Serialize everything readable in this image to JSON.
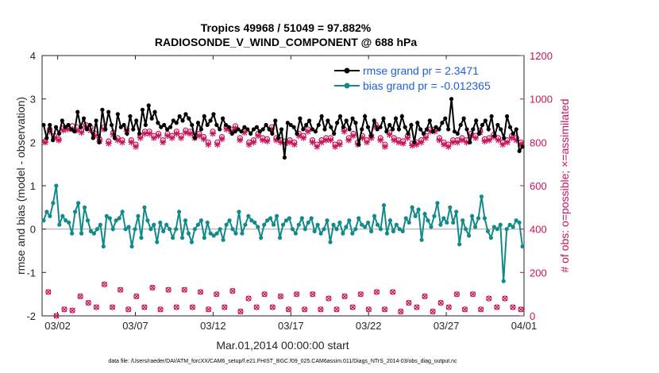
{
  "chart_data": {
    "type": "line",
    "title_line1": "Tropics 49968 / 51049 = 97.882%",
    "title_line2": "RADIOSONDE_V_WIND_COMPONENT @ 688 hPa",
    "ylabel_left": "rmse and bias (model - observation)",
    "ylabel_right": "# of obs: o=possible; ×=assimilated",
    "xlabel": "Mar.01,2014 00:00:00 start",
    "footer": "data file: /Users/raeder/DAI/ATM_forcXX/CAM6_setup/f.e21.FHIST_BGC.f09_025.CAM6assim.011/Diags_NTrS_2014-03/obs_diag_output.nc",
    "xlim": [
      0,
      31
    ],
    "ylim_left": [
      -2,
      4
    ],
    "ylim_right": [
      0,
      1200
    ],
    "x_ticks": [
      1,
      6,
      11,
      16,
      21,
      26,
      31
    ],
    "x_tick_labels": [
      "03/02",
      "03/07",
      "03/12",
      "03/17",
      "03/22",
      "03/27",
      "04/01"
    ],
    "y_ticks_left": [
      -2,
      -1,
      0,
      1,
      2,
      3,
      4
    ],
    "y_tick_labels_left": [
      "-2",
      "-1",
      "0",
      "1",
      "2",
      "3",
      "4"
    ],
    "y_ticks_right": [
      0,
      200,
      400,
      600,
      800,
      1000,
      1200
    ],
    "y_tick_labels_right": [
      "0",
      "200",
      "400",
      "600",
      "800",
      "1000",
      "1200"
    ],
    "legend": [
      {
        "label": "rmse grand pr = 2.3471",
        "color": "#000000"
      },
      {
        "label": "bias grand pr = -0.012365",
        "color": "#138a8a"
      }
    ],
    "colors": {
      "rmse": "#000000",
      "bias": "#138a8a",
      "obs": "#c8145a",
      "zero_line": "#bdbdbd"
    },
    "series": [
      {
        "name": "rmse",
        "axis": "left",
        "values": [
          2.4,
          2.1,
          2.4,
          2.05,
          2.35,
          2.2,
          2.5,
          2.35,
          2.4,
          2.3,
          2.25,
          2.7,
          2.35,
          2.55,
          2.3,
          2.4,
          2.1,
          2.5,
          2.0,
          2.75,
          2.3,
          2.7,
          2.4,
          2.1,
          2.65,
          2.35,
          2.4,
          2.2,
          2.6,
          2.3,
          2.5,
          2.2,
          2.75,
          2.4,
          2.85,
          2.55,
          2.7,
          2.45,
          2.35,
          2.4,
          2.3,
          2.35,
          2.5,
          2.45,
          2.6,
          2.5,
          2.65,
          2.55,
          2.4,
          2.1,
          2.45,
          2.3,
          2.6,
          2.4,
          2.5,
          2.65,
          2.4,
          2.3,
          2.55,
          2.4,
          2.35,
          2.2,
          2.25,
          2.3,
          2.25,
          2.35,
          2.3,
          2.2,
          2.3,
          2.35,
          2.25,
          2.3,
          2.4,
          2.3,
          2.2,
          2.5,
          2.1,
          2.3,
          1.65,
          2.45,
          2.4,
          2.35,
          2.2,
          2.55,
          2.3,
          2.4,
          2.5,
          2.3,
          2.25,
          2.4,
          2.6,
          2.3,
          2.5,
          2.35,
          2.2,
          2.45,
          2.6,
          2.35,
          2.5,
          2.3,
          2.55,
          2.45,
          1.95,
          2.3,
          2.6,
          2.35,
          2.15,
          2.5,
          2.3,
          2.35,
          2.55,
          2.25,
          2.4,
          2.3,
          2.55,
          2.3,
          2.6,
          2.35,
          2.2,
          2.4,
          2.0,
          2.45,
          2.3,
          2.2,
          2.3,
          2.5,
          2.25,
          2.35,
          2.3,
          2.45,
          2.55,
          2.3,
          3.0,
          2.25,
          2.2,
          2.4,
          2.55,
          2.3,
          2.0,
          2.3,
          2.5,
          2.2,
          2.4,
          2.5,
          2.3,
          2.6,
          2.15,
          2.4,
          2.3,
          2.1,
          2.6,
          2.35,
          2.2,
          2.3,
          1.8,
          1.9
        ]
      },
      {
        "name": "bias",
        "axis": "left",
        "values": [
          0.2,
          0.4,
          0.3,
          0.6,
          1.0,
          0.1,
          0.3,
          0.2,
          0.15,
          -0.1,
          0.4,
          0.6,
          -0.1,
          0.5,
          0.2,
          -0.05,
          -0.1,
          0.0,
          0.1,
          -0.4,
          0.3,
          0.25,
          0.0,
          0.2,
          0.25,
          0.4,
          0.0,
          0.05,
          -0.4,
          0.0,
          0.3,
          -0.2,
          0.5,
          0.2,
          0.0,
          0.1,
          -0.3,
          0.15,
          -0.05,
          0.1,
          0.0,
          -0.2,
          0.0,
          0.4,
          -0.2,
          0.2,
          -0.1,
          -0.3,
          0.0,
          0.1,
          0.2,
          -0.2,
          0.15,
          -0.1,
          -0.15,
          -0.1,
          0.0,
          -0.25,
          0.1,
          0.2,
          0.0,
          -0.1,
          0.4,
          -0.1,
          0.1,
          0.3,
          0.2,
          0.15,
          0.05,
          -0.2,
          0.1,
          0.2,
          0.25,
          0.1,
          0.3,
          -0.2,
          0.1,
          0.2,
          0.25,
          0.0,
          -0.1,
          0.1,
          0.25,
          0.0,
          0.15,
          0.25,
          -0.05,
          0.1,
          -0.1,
          0.0,
          0.2,
          -0.3,
          0.1,
          0.0,
          0.15,
          -0.1,
          0.05,
          0.2,
          -0.1,
          0.0,
          0.25,
          0.1,
          0.05,
          0.15,
          -0.05,
          0.3,
          0.1,
          0.0,
          0.55,
          -0.1,
          0.2,
          -0.05,
          0.1,
          0.0,
          -0.05,
          0.25,
          0.15,
          0.5,
          0.3,
          0.45,
          -0.25,
          0.35,
          0.2,
          0.05,
          0.3,
          0.6,
          0.1,
          0.25,
          0.15,
          0.5,
          0.15,
          0.4,
          -0.35,
          0.2,
          0.0,
          -0.15,
          0.3,
          0.05,
          0.25,
          0.75,
          0.25,
          -0.05,
          -0.2,
          0.05,
          0.0,
          0.1,
          -1.2,
          0.0,
          0.1,
          0.05,
          0.2,
          0.15,
          -0.4
        ]
      },
      {
        "name": "obs_possible",
        "axis": "right",
        "values": [
          805,
          860,
          830,
          815,
          865,
          870,
          875,
          870,
          855,
          880,
          870,
          840,
          815,
          870,
          805,
          845,
          820,
          810,
          860,
          810,
          790,
          830,
          850,
          850,
          830,
          840,
          810,
          840,
          830,
          850,
          830,
          855,
          850,
          830,
          840,
          825,
          800,
          850,
          800,
          825,
          870,
          860,
          875,
          820,
          855,
          800,
          810,
          840,
          820,
          815,
          870,
          820,
          810,
          805,
          810,
          800,
          840,
          830,
          860,
          810,
          790,
          810,
          820,
          820,
          790,
          800,
          860,
          820,
          840,
          800,
          830,
          810,
          830,
          880,
          820,
          790,
          845,
          820,
          810,
          805,
          830,
          795,
          800,
          810,
          830,
          860,
          860,
          820,
          800,
          790,
          810,
          810,
          820,
          810,
          840,
          830,
          855,
          815,
          820,
          835,
          820,
          800,
          810,
          830,
          820,
          800
        ]
      },
      {
        "name": "obs_assimilated",
        "axis": "right",
        "values": [
          800,
          850,
          820,
          810,
          855,
          860,
          860,
          855,
          845,
          870,
          855,
          830,
          805,
          860,
          795,
          835,
          810,
          800,
          850,
          800,
          780,
          820,
          840,
          840,
          820,
          830,
          800,
          830,
          820,
          840,
          820,
          845,
          840,
          820,
          830,
          815,
          790,
          840,
          790,
          815,
          860,
          850,
          865,
          810,
          845,
          790,
          800,
          830,
          810,
          805,
          860,
          810,
          800,
          795,
          800,
          790,
          830,
          820,
          850,
          800,
          780,
          800,
          810,
          810,
          780,
          790,
          850,
          810,
          830,
          790,
          820,
          800,
          820,
          870,
          810,
          780,
          835,
          810,
          800,
          795,
          820,
          785,
          790,
          800,
          820,
          850,
          850,
          810,
          790,
          780,
          800,
          800,
          810,
          800,
          830,
          820,
          845,
          805,
          810,
          825,
          810,
          790,
          800,
          820,
          810,
          790
        ]
      },
      {
        "name": "obs_possible_low",
        "axis": "right",
        "values": [
          110,
          0,
          30,
          25,
          90,
          60,
          40,
          145,
          40,
          120,
          30,
          90,
          40,
          130,
          30,
          120,
          40,
          120,
          40,
          110,
          30,
          100,
          40,
          115,
          20,
          80,
          40,
          100,
          40,
          90,
          30,
          100,
          30,
          100,
          30,
          80,
          30,
          90,
          40,
          100,
          30,
          110,
          30,
          110,
          20,
          60,
          40,
          90,
          20,
          60,
          40,
          100,
          30,
          100,
          30,
          80,
          40,
          80,
          40,
          30
        ]
      }
    ]
  }
}
